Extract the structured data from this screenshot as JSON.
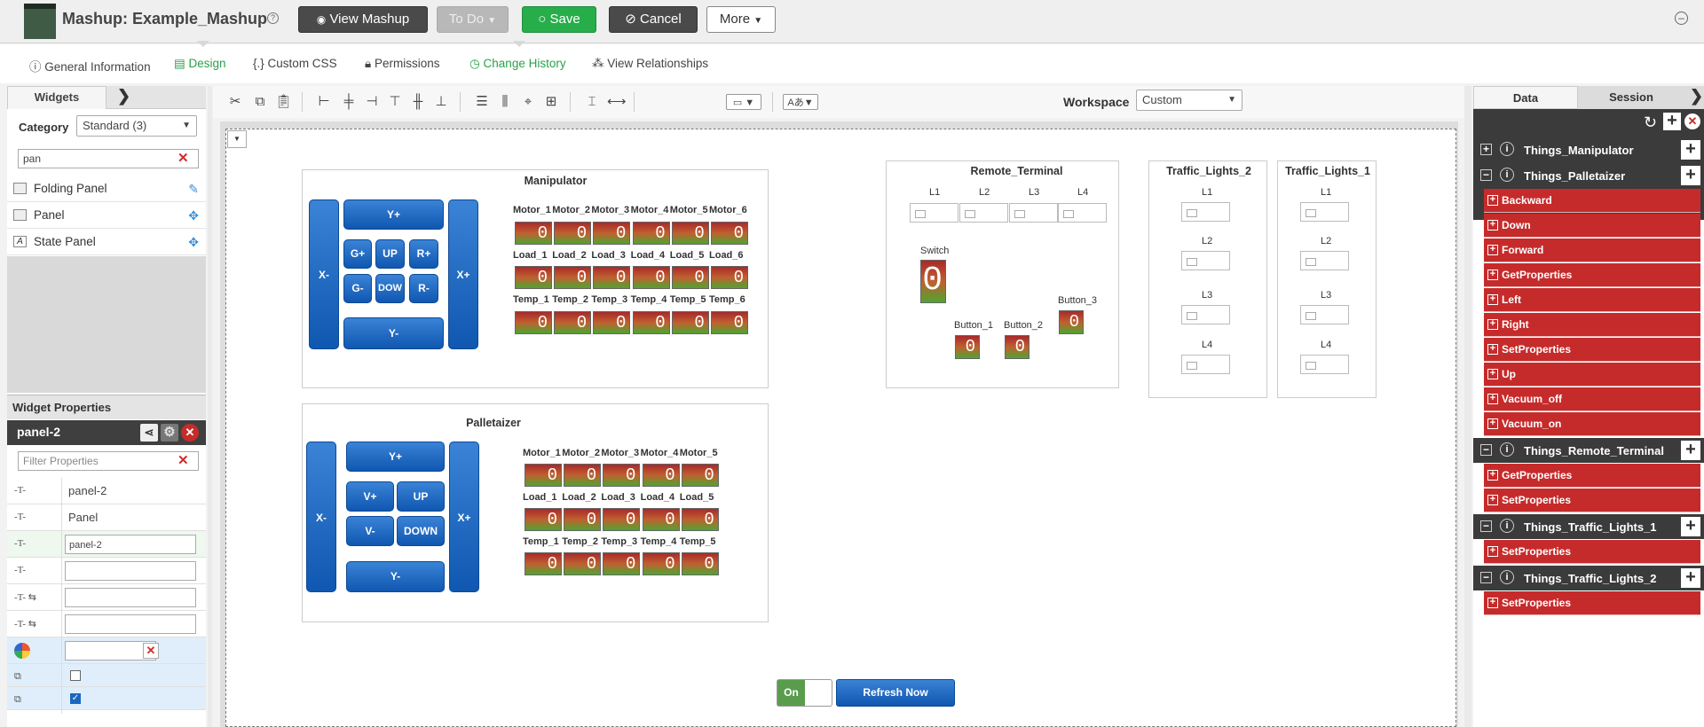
{
  "header": {
    "title": "Mashup: Example_Mashup",
    "help_glyph": "?",
    "view_label": "View Mashup",
    "todo_label": "To Do",
    "save_label": "Save",
    "cancel_label": "Cancel",
    "more_label": "More",
    "collapse_glyph": "–"
  },
  "tabs": [
    {
      "label": "General Information",
      "icon": "info-icon"
    },
    {
      "label": "Design",
      "icon": "design-icon"
    },
    {
      "label": "Custom CSS",
      "icon": "css-icon"
    },
    {
      "label": "Permissions",
      "icon": "lock-icon"
    },
    {
      "label": "Change History",
      "icon": "clock-icon"
    },
    {
      "label": "View Relationships",
      "icon": "relationships-icon"
    }
  ],
  "left": {
    "widgets_tab": "Widgets",
    "category_label": "Category",
    "category_value": "Standard (3)",
    "search_value": "pan",
    "items": [
      {
        "label": "Folding Panel"
      },
      {
        "label": "Panel"
      },
      {
        "label": "State Panel"
      }
    ],
    "props_title": "Widget Properties",
    "panel_name": "panel-2",
    "filter_placeholder": "Filter Properties",
    "props": [
      "panel-2",
      "Panel",
      "panel-2",
      "",
      "",
      ""
    ]
  },
  "toolbar": {
    "workspace_label": "Workspace",
    "workspace_value": "Custom"
  },
  "canvas": {
    "manipulator": {
      "title": "Manipulator",
      "buttons": {
        "yplus": "Y+",
        "yminus": "Y-",
        "xminus": "X-",
        "xplus": "X+",
        "gplus": "G+",
        "up": "UP",
        "rplus": "R+",
        "gminus": "G-",
        "down": "DOW",
        "rminus": "R-"
      },
      "motor_labels": [
        "Motor_1",
        "Motor_2",
        "Motor_3",
        "Motor_4",
        "Motor_5",
        "Motor_6"
      ],
      "load_labels": [
        "Load_1",
        "Load_2",
        "Load_3",
        "Load_4",
        "Load_5",
        "Load_6"
      ],
      "temp_labels": [
        "Temp_1",
        "Temp_2",
        "Temp_3",
        "Temp_4",
        "Temp_5",
        "Temp_6"
      ]
    },
    "palletaizer": {
      "title": "Palletaizer",
      "buttons": {
        "yplus": "Y+",
        "yminus": "Y-",
        "xminus": "X-",
        "xplus": "X+",
        "vplus": "V+",
        "up": "UP",
        "vminus": "V-",
        "down": "DOWN"
      },
      "motor_labels": [
        "Motor_1",
        "Motor_2",
        "Motor_3",
        "Motor_4",
        "Motor_5"
      ],
      "load_labels": [
        "Load_1",
        "Load_2",
        "Load_3",
        "Load_4",
        "Load_5"
      ],
      "temp_labels": [
        "Temp_1",
        "Temp_2",
        "Temp_3",
        "Temp_4",
        "Temp_5"
      ]
    },
    "led_value": "0",
    "remote": {
      "title": "Remote_Terminal",
      "l_labels": [
        "L1",
        "L2",
        "L3",
        "L4"
      ],
      "switch_label": "Switch",
      "button1": "Button_1",
      "button2": "Button_2",
      "button3": "Button_3"
    },
    "tl2": {
      "title": "Traffic_Lights_2",
      "labels": [
        "L1",
        "L2",
        "L3",
        "L4"
      ]
    },
    "tl1": {
      "title": "Traffic_Lights_1",
      "labels": [
        "L1",
        "L2",
        "L3",
        "L4"
      ]
    },
    "toggle_label": "On",
    "refresh_label": "Refresh Now"
  },
  "right": {
    "data_tab": "Data",
    "session_tab": "Session",
    "things": [
      {
        "name": "Things_Manipulator",
        "expanded": false,
        "services": []
      },
      {
        "name": "Things_Palletaizer",
        "expanded": true,
        "services": [
          "Backward",
          "Down",
          "Forward",
          "GetProperties",
          "Left",
          "Right",
          "SetProperties",
          "Up",
          "Vacuum_off",
          "Vacuum_on"
        ]
      },
      {
        "name": "Things_Remote_Terminal",
        "expanded": true,
        "services": [
          "GetProperties",
          "SetProperties"
        ]
      },
      {
        "name": "Things_Traffic_Lights_1",
        "expanded": true,
        "services": [
          "SetProperties"
        ]
      },
      {
        "name": "Things_Traffic_Lights_2",
        "expanded": true,
        "services": [
          "SetProperties"
        ]
      }
    ]
  },
  "colors": {
    "accent_green": "#27ae4a",
    "service_red": "#c62b2b",
    "button_blue": "#1a67c2"
  }
}
